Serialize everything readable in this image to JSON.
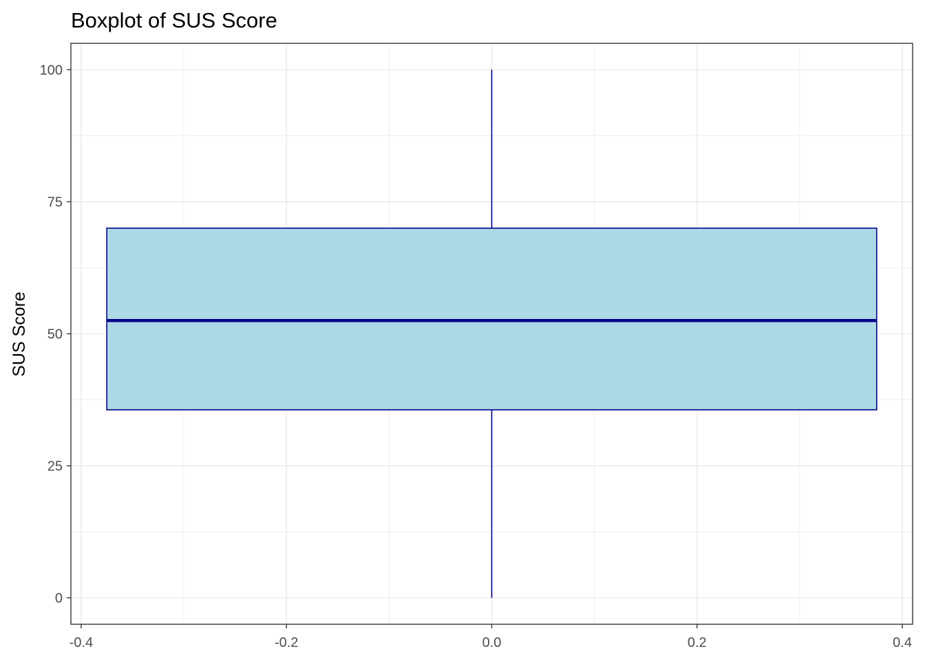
{
  "chart_data": {
    "type": "boxplot",
    "title": "Boxplot of SUS Score",
    "xlabel": "",
    "ylabel": "SUS Score",
    "xlim": [
      -0.41,
      0.41
    ],
    "ylim": [
      -5,
      105
    ],
    "x_ticks": [
      -0.4,
      -0.2,
      0.0,
      0.2,
      0.4
    ],
    "x_tick_labels": [
      "-0.4",
      "-0.2",
      "0.0",
      "0.2",
      "0.4"
    ],
    "y_ticks": [
      0,
      25,
      50,
      75,
      100
    ],
    "y_tick_labels": [
      "0",
      "25",
      "50",
      "75",
      "100"
    ],
    "grid": true,
    "legend": "none",
    "box": {
      "x_center": 0.0,
      "x_left": -0.375,
      "x_right": 0.375,
      "min": 0,
      "q1": 35.6,
      "median": 52.5,
      "q3": 70,
      "max": 100
    },
    "colors": {
      "fill": "#add8e6",
      "outline": "#00008b",
      "panel_border": "#333333",
      "grid": "#ebebeb"
    }
  }
}
